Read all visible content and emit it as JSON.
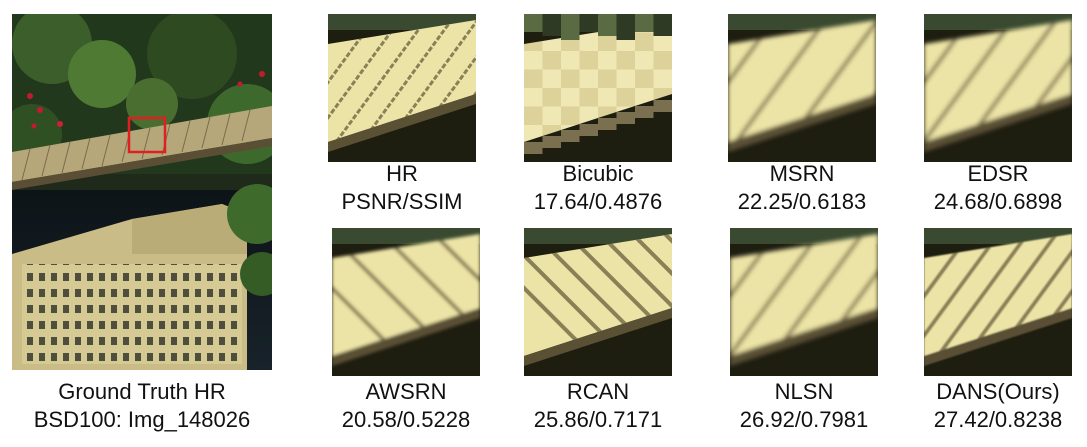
{
  "figure": {
    "ground_truth": {
      "title": "Ground Truth HR",
      "subtitle": "BSD100: Img_148026"
    },
    "panels": [
      {
        "id": "hr",
        "name": "HR",
        "score": "PSNR/SSIM",
        "style": "sharp",
        "stripe_count": 10
      },
      {
        "id": "bicubic",
        "name": "Bicubic",
        "score": "17.64/0.4876",
        "style": "blocky",
        "stripe_count": 0
      },
      {
        "id": "msrn",
        "name": "MSRN",
        "score": "22.25/0.6183",
        "style": "blur",
        "stripe_count": 5
      },
      {
        "id": "edsr",
        "name": "EDSR",
        "score": "24.68/0.6898",
        "style": "blur",
        "stripe_count": 6
      },
      {
        "id": "awsrn",
        "name": "AWSRN",
        "score": "20.58/0.5228",
        "style": "wrong",
        "stripe_count": 5
      },
      {
        "id": "rcan",
        "name": "RCAN",
        "score": "25.86/0.7171",
        "style": "wrong-sharp",
        "stripe_count": 8
      },
      {
        "id": "nlsn",
        "name": "NLSN",
        "score": "26.92/0.7981",
        "style": "blur",
        "stripe_count": 6
      },
      {
        "id": "dans",
        "name": "DANS(Ours)",
        "score": "27.42/0.8238",
        "style": "sharp-soft",
        "stripe_count": 9
      }
    ],
    "colors": {
      "board": "#ece3a6",
      "stripe": "#8a8058",
      "dark_bg": "#1d1d10",
      "highlight_box": "#e02020"
    }
  }
}
